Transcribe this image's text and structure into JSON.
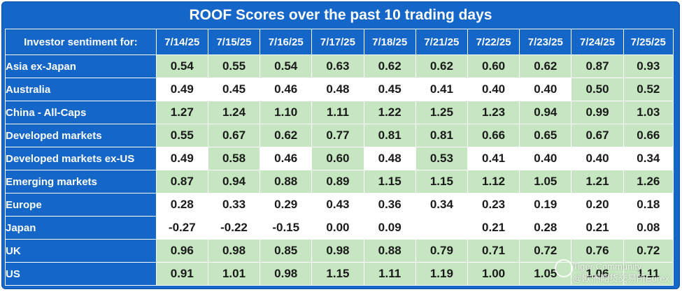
{
  "title": "ROOF Scores over the past 10 trading days",
  "header": {
    "row_label": "Investor sentiment for:",
    "dates": [
      "7/14/25",
      "7/15/25",
      "7/16/25",
      "7/17/25",
      "7/18/25",
      "7/21/25",
      "7/22/25",
      "7/23/25",
      "7/24/25",
      "7/25/25"
    ]
  },
  "rows": [
    {
      "label": "Asia ex-Japan",
      "values": [
        "0.54",
        "0.55",
        "0.54",
        "0.63",
        "0.62",
        "0.62",
        "0.60",
        "0.62",
        "0.87",
        "0.93"
      ],
      "shading": [
        "green",
        "green",
        "green",
        "green",
        "green",
        "green",
        "green",
        "green",
        "green",
        "green"
      ]
    },
    {
      "label": "Australia",
      "values": [
        "0.49",
        "0.45",
        "0.46",
        "0.48",
        "0.45",
        "0.41",
        "0.40",
        "0.40",
        "0.50",
        "0.52"
      ],
      "shading": [
        "white",
        "white",
        "white",
        "white",
        "white",
        "white",
        "white",
        "white",
        "green",
        "green"
      ]
    },
    {
      "label": "China - All-Caps",
      "values": [
        "1.27",
        "1.24",
        "1.10",
        "1.11",
        "1.22",
        "1.25",
        "1.23",
        "0.94",
        "0.99",
        "1.03"
      ],
      "shading": [
        "green",
        "green",
        "green",
        "green",
        "green",
        "green",
        "green",
        "green",
        "green",
        "green"
      ]
    },
    {
      "label": "Developed markets",
      "values": [
        "0.55",
        "0.67",
        "0.62",
        "0.77",
        "0.81",
        "0.81",
        "0.66",
        "0.65",
        "0.67",
        "0.66"
      ],
      "shading": [
        "green",
        "green",
        "green",
        "green",
        "green",
        "green",
        "green",
        "green",
        "green",
        "green"
      ]
    },
    {
      "label": "Developed markets ex-US",
      "values": [
        "0.49",
        "0.58",
        "0.46",
        "0.60",
        "0.48",
        "0.53",
        "0.41",
        "0.40",
        "0.40",
        "0.34"
      ],
      "shading": [
        "white",
        "green",
        "white",
        "green",
        "white",
        "green",
        "white",
        "white",
        "white",
        "white"
      ]
    },
    {
      "label": "Emerging markets",
      "values": [
        "0.87",
        "0.94",
        "0.88",
        "0.89",
        "1.15",
        "1.15",
        "1.12",
        "1.05",
        "1.21",
        "1.26"
      ],
      "shading": [
        "green",
        "green",
        "green",
        "green",
        "green",
        "green",
        "green",
        "green",
        "green",
        "green"
      ]
    },
    {
      "label": "Europe",
      "values": [
        "0.28",
        "0.33",
        "0.29",
        "0.43",
        "0.36",
        "0.34",
        "0.23",
        "0.19",
        "0.20",
        "0.18"
      ],
      "shading": [
        "white",
        "white",
        "white",
        "white",
        "white",
        "white",
        "white",
        "white",
        "white",
        "white"
      ]
    },
    {
      "label": "Japan",
      "values": [
        "-0.27",
        "-0.22",
        "-0.15",
        "0.00",
        "0.09",
        "",
        "0.21",
        "0.28",
        "0.21",
        "0.08"
      ],
      "shading": [
        "white",
        "white",
        "white",
        "white",
        "white",
        "white",
        "white",
        "white",
        "white",
        "white"
      ]
    },
    {
      "label": "UK",
      "values": [
        "0.96",
        "0.98",
        "0.85",
        "0.98",
        "0.88",
        "0.79",
        "0.71",
        "0.72",
        "0.76",
        "0.72"
      ],
      "shading": [
        "green",
        "green",
        "green",
        "green",
        "green",
        "green",
        "green",
        "green",
        "green",
        "green"
      ]
    },
    {
      "label": "US",
      "values": [
        "0.91",
        "1.01",
        "0.98",
        "1.15",
        "1.11",
        "1.19",
        "1.00",
        "1.05",
        "1.06",
        "1.11"
      ],
      "shading": [
        "green",
        "green",
        "green",
        "green",
        "green",
        "green",
        "green",
        "green",
        "green",
        "green"
      ]
    }
  ],
  "colors": {
    "header_blue": "#1466c8",
    "cell_green": "#c5e6c0",
    "cell_white": "#ffffff"
  },
  "watermark": {
    "line1": "Tiger Community",
    "line2": "@欧洲期货交易所Eurex",
    "icon": "tiger-logo-icon"
  }
}
